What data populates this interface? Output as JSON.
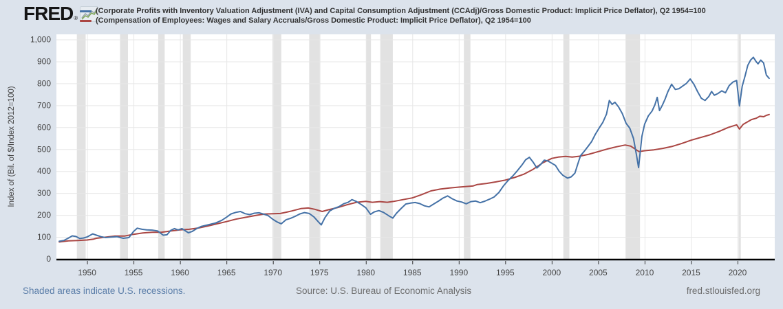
{
  "header": {
    "logo_text": "FRED",
    "logo_registered": "®",
    "legend": [
      {
        "label": "(Corporate Profits with Inventory Valuation Adjustment (IVA) and Capital Consumption Adjustment (CCAdj)/Gross Domestic Product: Implicit Price Deflator), Q2 1954=100",
        "color": "#4572a7"
      },
      {
        "label": "(Compensation of Employees: Wages and Salary Accruals/Gross Domestic Product: Implicit Price Deflator), Q2 1954=100",
        "color": "#aa4643"
      }
    ]
  },
  "footer": {
    "left": "Shaded areas indicate U.S. recessions.",
    "center": "Source: U.S. Bureau of Economic Analysis",
    "right": "fred.stlouisfed.org"
  },
  "colors": {
    "background": "#dce3ec",
    "plot_background": "#ffffff",
    "gridline": "#e7e7e7",
    "recession_band": "#e2e2e2",
    "axis_line": "#000000",
    "tick_text": "#444444",
    "tick_mark": "#333333",
    "blue_series": "#4572a7",
    "red_series": "#aa4643"
  },
  "chart_data": {
    "type": "line",
    "title": "",
    "xlabel": "",
    "ylabel": "Index of (Bil. of $/Index 2012=100)",
    "xlim": [
      1946.7,
      2024.0
    ],
    "ylim": [
      0,
      1000
    ],
    "grid": true,
    "legend_position": "top",
    "xticks": [
      1950,
      1955,
      1960,
      1965,
      1970,
      1975,
      1980,
      1985,
      1990,
      1995,
      2000,
      2005,
      2010,
      2015,
      2020
    ],
    "yticks": [
      [
        0,
        "0"
      ],
      [
        100,
        "100"
      ],
      [
        200,
        "200"
      ],
      [
        300,
        "300"
      ],
      [
        400,
        "400"
      ],
      [
        500,
        "500"
      ],
      [
        600,
        "600"
      ],
      [
        700,
        "700"
      ],
      [
        800,
        "800"
      ],
      [
        900,
        "900"
      ],
      [
        1000,
        "1,000"
      ]
    ],
    "recessions": [
      [
        1948.9,
        1949.85
      ],
      [
        1953.55,
        1954.4
      ],
      [
        1957.65,
        1958.35
      ],
      [
        1960.3,
        1961.15
      ],
      [
        1969.95,
        1970.9
      ],
      [
        1973.9,
        1975.1
      ],
      [
        1980.05,
        1980.55
      ],
      [
        1981.55,
        1982.9
      ],
      [
        1990.55,
        1991.25
      ],
      [
        2001.25,
        2001.9
      ],
      [
        2007.95,
        2009.5
      ],
      [
        2020.1,
        2020.35
      ]
    ],
    "series": [
      {
        "name": "(Corporate Profits with Inventory Valuation Adjustment (IVA) and Capital Consumption Adjustment (CCAdj)/Gross Domestic Product: Implicit Price Deflator), Q2 1954=100",
        "color": "#4572a7",
        "points": [
          [
            1947.0,
            80
          ],
          [
            1947.5,
            84
          ],
          [
            1948.0,
            95
          ],
          [
            1948.4,
            105
          ],
          [
            1948.8,
            102
          ],
          [
            1949.2,
            93
          ],
          [
            1949.6,
            95
          ],
          [
            1950.0,
            100
          ],
          [
            1950.6,
            114
          ],
          [
            1951.0,
            108
          ],
          [
            1951.5,
            101
          ],
          [
            1952.0,
            97
          ],
          [
            1952.5,
            99
          ],
          [
            1953.2,
            101
          ],
          [
            1953.9,
            94
          ],
          [
            1954.5,
            97
          ],
          [
            1955.0,
            125
          ],
          [
            1955.4,
            140
          ],
          [
            1955.9,
            135
          ],
          [
            1956.4,
            132
          ],
          [
            1957.0,
            131
          ],
          [
            1957.6,
            127
          ],
          [
            1958.2,
            108
          ],
          [
            1958.6,
            110
          ],
          [
            1959.0,
            130
          ],
          [
            1959.4,
            138
          ],
          [
            1959.8,
            132
          ],
          [
            1960.2,
            138
          ],
          [
            1960.9,
            119
          ],
          [
            1961.3,
            125
          ],
          [
            1961.8,
            138
          ],
          [
            1962.3,
            148
          ],
          [
            1963.0,
            155
          ],
          [
            1963.8,
            163
          ],
          [
            1964.5,
            176
          ],
          [
            1965.0,
            190
          ],
          [
            1965.5,
            205
          ],
          [
            1966.0,
            212
          ],
          [
            1966.5,
            216
          ],
          [
            1967.0,
            206
          ],
          [
            1967.5,
            202
          ],
          [
            1968.0,
            208
          ],
          [
            1968.5,
            210
          ],
          [
            1969.0,
            204
          ],
          [
            1969.5,
            197
          ],
          [
            1970.0,
            180
          ],
          [
            1970.5,
            167
          ],
          [
            1970.9,
            160
          ],
          [
            1971.4,
            178
          ],
          [
            1971.9,
            185
          ],
          [
            1972.4,
            194
          ],
          [
            1972.9,
            205
          ],
          [
            1973.4,
            211
          ],
          [
            1973.9,
            207
          ],
          [
            1974.4,
            192
          ],
          [
            1974.9,
            168
          ],
          [
            1975.2,
            155
          ],
          [
            1975.6,
            188
          ],
          [
            1976.1,
            218
          ],
          [
            1976.6,
            230
          ],
          [
            1977.1,
            238
          ],
          [
            1977.6,
            251
          ],
          [
            1978.1,
            258
          ],
          [
            1978.5,
            270
          ],
          [
            1979.0,
            261
          ],
          [
            1979.5,
            248
          ],
          [
            1980.0,
            233
          ],
          [
            1980.5,
            203
          ],
          [
            1980.9,
            214
          ],
          [
            1981.4,
            220
          ],
          [
            1981.9,
            212
          ],
          [
            1982.4,
            198
          ],
          [
            1982.9,
            186
          ],
          [
            1983.3,
            208
          ],
          [
            1983.8,
            230
          ],
          [
            1984.3,
            250
          ],
          [
            1984.8,
            254
          ],
          [
            1985.3,
            257
          ],
          [
            1985.8,
            252
          ],
          [
            1986.3,
            242
          ],
          [
            1986.8,
            237
          ],
          [
            1987.3,
            250
          ],
          [
            1987.8,
            263
          ],
          [
            1988.3,
            277
          ],
          [
            1988.8,
            287
          ],
          [
            1989.3,
            274
          ],
          [
            1989.8,
            264
          ],
          [
            1990.3,
            259
          ],
          [
            1990.8,
            251
          ],
          [
            1991.3,
            261
          ],
          [
            1991.8,
            264
          ],
          [
            1992.3,
            256
          ],
          [
            1992.8,
            263
          ],
          [
            1993.3,
            272
          ],
          [
            1993.8,
            282
          ],
          [
            1994.3,
            302
          ],
          [
            1994.8,
            332
          ],
          [
            1995.3,
            357
          ],
          [
            1995.8,
            377
          ],
          [
            1996.3,
            402
          ],
          [
            1996.8,
            428
          ],
          [
            1997.2,
            452
          ],
          [
            1997.6,
            463
          ],
          [
            1998.0,
            441
          ],
          [
            1998.4,
            414
          ],
          [
            1998.8,
            430
          ],
          [
            1999.2,
            450
          ],
          [
            1999.6,
            446
          ],
          [
            2000.0,
            436
          ],
          [
            2000.4,
            426
          ],
          [
            2000.8,
            399
          ],
          [
            2001.2,
            381
          ],
          [
            2001.7,
            368
          ],
          [
            2002.1,
            374
          ],
          [
            2002.5,
            391
          ],
          [
            2002.8,
            432
          ],
          [
            2003.1,
            470
          ],
          [
            2003.5,
            490
          ],
          [
            2003.9,
            512
          ],
          [
            2004.3,
            535
          ],
          [
            2004.7,
            568
          ],
          [
            2005.1,
            596
          ],
          [
            2005.5,
            622
          ],
          [
            2005.9,
            660
          ],
          [
            2006.2,
            722
          ],
          [
            2006.5,
            704
          ],
          [
            2006.8,
            714
          ],
          [
            2007.2,
            692
          ],
          [
            2007.6,
            662
          ],
          [
            2008.0,
            618
          ],
          [
            2008.4,
            596
          ],
          [
            2008.8,
            549
          ],
          [
            2009.1,
            478
          ],
          [
            2009.35,
            416
          ],
          [
            2009.7,
            558
          ],
          [
            2010.0,
            614
          ],
          [
            2010.4,
            652
          ],
          [
            2010.8,
            674
          ],
          [
            2011.1,
            702
          ],
          [
            2011.35,
            736
          ],
          [
            2011.6,
            676
          ],
          [
            2011.9,
            700
          ],
          [
            2012.2,
            728
          ],
          [
            2012.5,
            762
          ],
          [
            2012.9,
            796
          ],
          [
            2013.3,
            772
          ],
          [
            2013.7,
            776
          ],
          [
            2014.1,
            788
          ],
          [
            2014.5,
            800
          ],
          [
            2014.9,
            820
          ],
          [
            2015.3,
            796
          ],
          [
            2015.7,
            762
          ],
          [
            2016.1,
            732
          ],
          [
            2016.5,
            722
          ],
          [
            2016.9,
            740
          ],
          [
            2017.2,
            763
          ],
          [
            2017.5,
            746
          ],
          [
            2017.9,
            754
          ],
          [
            2018.3,
            766
          ],
          [
            2018.7,
            757
          ],
          [
            2019.1,
            790
          ],
          [
            2019.5,
            806
          ],
          [
            2019.9,
            813
          ],
          [
            2020.2,
            697
          ],
          [
            2020.5,
            787
          ],
          [
            2020.8,
            833
          ],
          [
            2021.1,
            882
          ],
          [
            2021.4,
            906
          ],
          [
            2021.7,
            919
          ],
          [
            2022.0,
            899
          ],
          [
            2022.2,
            889
          ],
          [
            2022.5,
            906
          ],
          [
            2022.8,
            893
          ],
          [
            2023.1,
            838
          ],
          [
            2023.4,
            823
          ]
        ]
      },
      {
        "name": "(Compensation of Employees: Wages and Salary Accruals/Gross Domestic Product: Implicit Price Deflator), Q2 1954=100",
        "color": "#aa4643",
        "points": [
          [
            1947.0,
            77
          ],
          [
            1948.0,
            82
          ],
          [
            1949.0,
            84
          ],
          [
            1950.0,
            86
          ],
          [
            1950.7,
            90
          ],
          [
            1951.0,
            94
          ],
          [
            1952.0,
            99
          ],
          [
            1953.0,
            104
          ],
          [
            1954.0,
            104
          ],
          [
            1955.0,
            112
          ],
          [
            1956.0,
            118
          ],
          [
            1957.0,
            121
          ],
          [
            1958.0,
            121
          ],
          [
            1959.0,
            127
          ],
          [
            1960.0,
            132
          ],
          [
            1961.0,
            135
          ],
          [
            1962.0,
            141
          ],
          [
            1963.0,
            150
          ],
          [
            1964.0,
            160
          ],
          [
            1965.0,
            170
          ],
          [
            1966.0,
            181
          ],
          [
            1967.0,
            189
          ],
          [
            1968.0,
            197
          ],
          [
            1969.0,
            204
          ],
          [
            1970.0,
            206
          ],
          [
            1970.8,
            207
          ],
          [
            1971.5,
            213
          ],
          [
            1972.0,
            218
          ],
          [
            1973.0,
            229
          ],
          [
            1973.8,
            232
          ],
          [
            1974.5,
            226
          ],
          [
            1975.3,
            216
          ],
          [
            1976.0,
            224
          ],
          [
            1977.0,
            234
          ],
          [
            1978.0,
            247
          ],
          [
            1979.0,
            258
          ],
          [
            1980.0,
            262
          ],
          [
            1980.7,
            258
          ],
          [
            1981.5,
            261
          ],
          [
            1982.3,
            258
          ],
          [
            1983.0,
            262
          ],
          [
            1984.0,
            270
          ],
          [
            1985.0,
            278
          ],
          [
            1986.0,
            293
          ],
          [
            1987.0,
            310
          ],
          [
            1988.0,
            318
          ],
          [
            1989.0,
            323
          ],
          [
            1990.0,
            327
          ],
          [
            1990.8,
            330
          ],
          [
            1991.5,
            332
          ],
          [
            1992.0,
            339
          ],
          [
            1993.0,
            344
          ],
          [
            1994.0,
            351
          ],
          [
            1995.0,
            359
          ],
          [
            1996.0,
            371
          ],
          [
            1997.0,
            386
          ],
          [
            1998.0,
            408
          ],
          [
            1999.0,
            437
          ],
          [
            2000.0,
            458
          ],
          [
            2000.7,
            464
          ],
          [
            2001.5,
            467
          ],
          [
            2002.2,
            464
          ],
          [
            2003.0,
            468
          ],
          [
            2004.0,
            477
          ],
          [
            2005.0,
            489
          ],
          [
            2006.0,
            501
          ],
          [
            2007.0,
            511
          ],
          [
            2007.9,
            519
          ],
          [
            2008.5,
            514
          ],
          [
            2009.4,
            489
          ],
          [
            2010.0,
            493
          ],
          [
            2011.0,
            497
          ],
          [
            2012.0,
            504
          ],
          [
            2013.0,
            513
          ],
          [
            2014.0,
            526
          ],
          [
            2015.0,
            541
          ],
          [
            2016.0,
            553
          ],
          [
            2017.0,
            565
          ],
          [
            2018.0,
            581
          ],
          [
            2019.0,
            599
          ],
          [
            2019.9,
            611
          ],
          [
            2020.2,
            592
          ],
          [
            2020.6,
            613
          ],
          [
            2021.0,
            623
          ],
          [
            2021.5,
            635
          ],
          [
            2022.0,
            641
          ],
          [
            2022.4,
            650
          ],
          [
            2022.8,
            648
          ],
          [
            2023.1,
            654
          ],
          [
            2023.4,
            658
          ]
        ]
      }
    ]
  }
}
